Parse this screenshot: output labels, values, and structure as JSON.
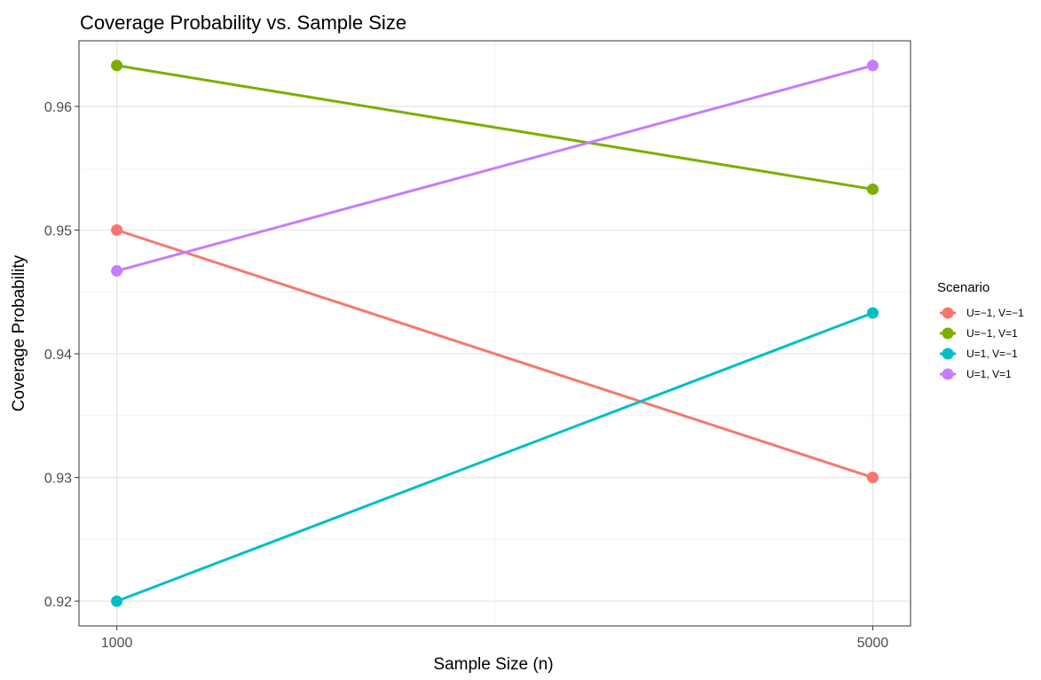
{
  "chart_data": {
    "type": "line",
    "title": "Coverage Probability vs. Sample Size",
    "xlabel": "Sample Size (n)",
    "ylabel": "Coverage Probability",
    "x": [
      1000,
      5000
    ],
    "x_tick_labels": [
      "1000",
      "5000"
    ],
    "xlim": [
      800,
      5200
    ],
    "ylim": [
      0.918,
      0.9653
    ],
    "y_ticks": [
      0.92,
      0.93,
      0.94,
      0.95,
      0.96
    ],
    "y_tick_labels": [
      "0.92",
      "0.93",
      "0.94",
      "0.95",
      "0.96"
    ],
    "grid": true,
    "legend": {
      "title": "Scenario",
      "placement": "right"
    },
    "series": [
      {
        "name": "U=−1, V=−1",
        "color": "#F8766D",
        "values": [
          0.95,
          0.93
        ]
      },
      {
        "name": "U=−1, V=1",
        "color": "#7CAE00",
        "values": [
          0.9633,
          0.9533
        ]
      },
      {
        "name": "U=1, V=−1",
        "color": "#00BFC4",
        "values": [
          0.92,
          0.9433
        ]
      },
      {
        "name": "U=1, V=1",
        "color": "#C77CFF",
        "values": [
          0.9467,
          0.9633
        ]
      }
    ]
  }
}
